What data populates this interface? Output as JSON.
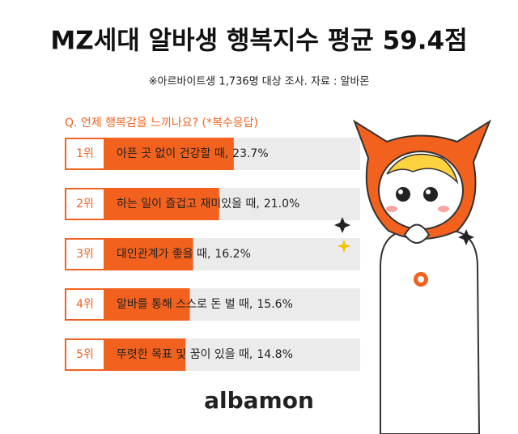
{
  "chart_data": {
    "type": "bar",
    "orientation": "horizontal",
    "title": "MZ세대 알바생 행복지수 평균 59.4점",
    "subtitle": "※아르바이트생 1,736명 대상 조사. 자료 : 알바몬",
    "question": "Q. 언제 행복감을 느끼나요? (*복수응답)",
    "ranks": [
      "1위",
      "2위",
      "3위",
      "4위",
      "5위"
    ],
    "categories": [
      "아픈 곳 없이 건강할 때,",
      "하는 일이 즐겁고 재미있을 때,",
      "대인관계가 좋을 때,",
      "알바를 통해 스스로 돈 벌 때,",
      "뚜렷한 목표 및 꿈이 있을 때,"
    ],
    "values": [
      23.7,
      21.0,
      16.2,
      15.6,
      14.8
    ],
    "value_labels": [
      "23.7%",
      "21.0%",
      "16.2%",
      "15.6%",
      "14.8%"
    ],
    "color": "#f2611d",
    "xlim": [
      0,
      47
    ],
    "brand": "albamon"
  }
}
